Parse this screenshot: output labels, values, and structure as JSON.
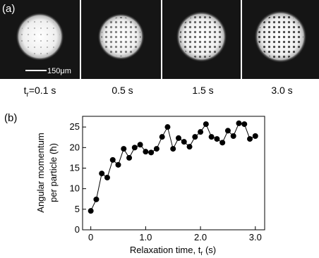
{
  "panel_a": {
    "label": "(a)",
    "scale_bar": "150μm",
    "frames": [
      {
        "caption": [
          "t",
          "r",
          "=0.1 s"
        ]
      },
      {
        "caption": [
          "0.5 s"
        ]
      },
      {
        "caption": [
          "1.5 s"
        ]
      },
      {
        "caption": [
          "3.0 s"
        ]
      }
    ]
  },
  "chart_data": {
    "type": "line",
    "label": "(b)",
    "y_label": [
      "Angular momentum",
      "per particle (ħ)"
    ],
    "x_label": [
      "Relaxation time, t",
      "r",
      " (s)"
    ],
    "x": [
      0,
      0.1,
      0.2,
      0.3,
      0.4,
      0.5,
      0.6,
      0.7,
      0.8,
      0.9,
      1.0,
      1.1,
      1.2,
      1.3,
      1.4,
      1.5,
      1.6,
      1.7,
      1.8,
      1.9,
      2.0,
      2.1,
      2.2,
      2.3,
      2.4,
      2.5,
      2.6,
      2.7,
      2.8,
      2.9,
      3.0
    ],
    "values": [
      4.6,
      7.4,
      13.7,
      12.7,
      17,
      15.8,
      19.7,
      17.5,
      20,
      20.7,
      19,
      18.8,
      19.7,
      22.6,
      25,
      19.7,
      22.3,
      21.4,
      20.2,
      22.6,
      23.8,
      25.7,
      22.6,
      22.1,
      21.2,
      24.1,
      22.8,
      25.9,
      25.7,
      22.1,
      22.8
    ],
    "color": "#000000",
    "xlim": [
      -0.15,
      3.17
    ],
    "ylim": [
      0,
      27.6
    ],
    "xticks": [
      0,
      {
        "value": 1,
        "label": "1.0"
      },
      {
        "value": 2,
        "label": "2.0"
      },
      {
        "value": 3,
        "label": "3.0"
      }
    ],
    "yticks": [
      0,
      5,
      10,
      15,
      20,
      25
    ]
  }
}
